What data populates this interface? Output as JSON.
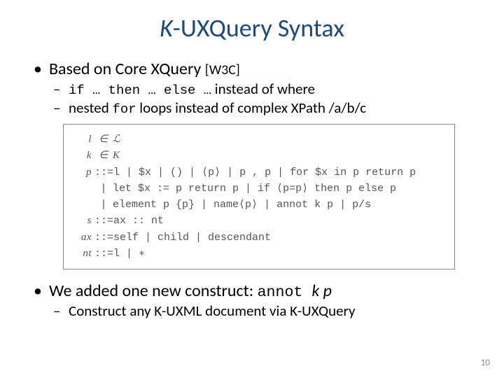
{
  "title_prefix": "K",
  "title_rest": "-UXQuery Syntax",
  "b1": "Based on Core XQuery ",
  "b1_ref": "[W3C]",
  "b1a_pre": "if … then … else …",
  "b1a_post": " instead of where",
  "b1b_pre": "nested ",
  "b1b_mono": "for",
  "b1b_post": " loops instead of complex XPath /a/b/c",
  "b2_pre": "We added one new construct: ",
  "b2_mono": "annot ",
  "b2_ital": "k p",
  "b2a": "Construct any K-UXML document via K-UXQuery",
  "page_num": "10",
  "grammar": {
    "r1_lhs": "l",
    "r1_op": "∈",
    "r1_rhs": "ℒ",
    "r2_lhs": "k",
    "r2_op": "∈",
    "r2_rhs": "K",
    "r3_lhs": "p",
    "r3_op": "::=",
    "r3_rhs": "l | $x | () | ⟨p⟩ | p , p | for $x in p return p",
    "r4_rhs": "let $x := p return p | if ⟨p=p⟩ then p else p",
    "r5_rhs": "element p {p} | name⟨p⟩ | annot k p | p/s",
    "r6_lhs": "s",
    "r6_op": "::=",
    "r6_rhs": "ax :: nt",
    "r7_lhs": "ax",
    "r7_op": "::=",
    "r7_rhs": "self | child | descendant",
    "r8_lhs": "nt",
    "r8_op": "::=",
    "r8_rhs": "l | ∗"
  }
}
